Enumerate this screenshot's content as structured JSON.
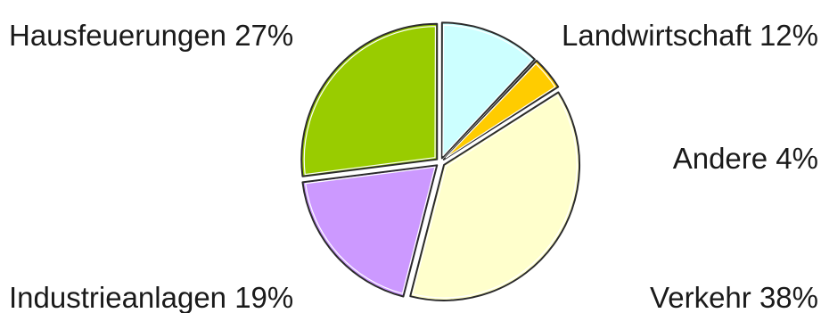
{
  "chart_data": {
    "type": "pie",
    "title": "",
    "start_angle_deg": 0,
    "direction": "clockwise",
    "exploded": true,
    "legend": "none",
    "slices": [
      {
        "label": "Landwirtschaft",
        "value": 12,
        "display": "Landwirtschaft 12%",
        "color": "#CCFFFF"
      },
      {
        "label": "Andere",
        "value": 4,
        "display": "Andere 4%",
        "color": "#FFCC00"
      },
      {
        "label": "Verkehr",
        "value": 38,
        "display": "Verkehr 38%",
        "color": "#FFFFCC"
      },
      {
        "label": "Industrieanlagen",
        "value": 19,
        "display": "Industrieanlagen 19%",
        "color": "#CC99FF"
      },
      {
        "label": "Hausfeuerungen",
        "value": 27,
        "display": "Hausfeuerungen 27%",
        "color": "#99CC00"
      }
    ]
  }
}
